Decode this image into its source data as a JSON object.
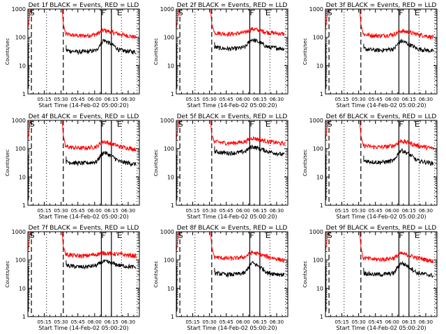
{
  "figure": {
    "layout": "3x3 grid of detector light curves"
  },
  "chart_data": [
    {
      "type": "line",
      "title": "Det 1f BLACK = Events, RED = LLD",
      "xlabel": "Start Time (14-Feb-02 05:00:20)",
      "ylabel": "Counts/sec",
      "yscale": "log",
      "ylim": [
        1,
        1000
      ],
      "xlim_minutes_after_0500": [
        0.33,
        100
      ],
      "x_tick_labels": [
        "05:15",
        "05:30",
        "05:45",
        "06:00",
        "06:15",
        "06:30"
      ],
      "y_tick_labels": [
        "1",
        "10",
        "100",
        "1000"
      ],
      "markers": {
        "S": 2,
        "F": 66,
        "E": 80
      },
      "vlines": {
        "dashed": [
          3.5,
          32
        ],
        "dotted": [
          17,
          84,
          98
        ],
        "solid": [
          66,
          75
        ]
      },
      "series": [
        {
          "name": "LLD",
          "color": "#ff0000",
          "baseline": 130,
          "flare_peak": 180,
          "end": 100
        },
        {
          "name": "Events",
          "color": "#000000",
          "baseline": 35,
          "flare_peak": 80,
          "end": 30
        }
      ]
    },
    {
      "type": "line",
      "title": "Det 2f BLACK = Events, RED = LLD",
      "xlabel": "Start Time (14-Feb-02 05:00:20)",
      "ylabel": "Counts/sec",
      "yscale": "log",
      "ylim": [
        1,
        1000
      ],
      "xlim_minutes_after_0500": [
        0.33,
        100
      ],
      "x_tick_labels": [
        "05:15",
        "05:30",
        "05:45",
        "06:00",
        "06:15",
        "06:30"
      ],
      "y_tick_labels": [
        "1",
        "10",
        "100",
        "1000"
      ],
      "markers": {
        "S": 2,
        "F": 66,
        "E": 80
      },
      "vlines": {
        "dashed": [
          3.5,
          32
        ],
        "dotted": [
          17,
          84,
          98
        ],
        "solid": [
          66,
          75
        ]
      },
      "series": [
        {
          "name": "LLD",
          "color": "#ff0000",
          "baseline": 150,
          "flare_peak": 200,
          "end": 130
        },
        {
          "name": "Events",
          "color": "#000000",
          "baseline": 45,
          "flare_peak": 85,
          "end": 40
        }
      ]
    },
    {
      "type": "line",
      "title": "Det 3f BLACK = Events, RED = LLD",
      "xlabel": "Start Time (14-Feb-02 05:00:20)",
      "ylabel": "Counts/sec",
      "yscale": "log",
      "ylim": [
        1,
        1000
      ],
      "xlim_minutes_after_0500": [
        0.33,
        100
      ],
      "x_tick_labels": [
        "05:15",
        "05:30",
        "05:45",
        "06:00",
        "06:15",
        "06:30"
      ],
      "y_tick_labels": [
        "1",
        "10",
        "100",
        "1000"
      ],
      "markers": {
        "S": 2,
        "F": 66,
        "E": 80
      },
      "vlines": {
        "dashed": [
          3.5,
          32
        ],
        "dotted": [
          17,
          84,
          98
        ],
        "solid": [
          66,
          75
        ]
      },
      "series": [
        {
          "name": "LLD",
          "color": "#ff0000",
          "baseline": 130,
          "flare_peak": 170,
          "end": 100
        },
        {
          "name": "Events",
          "color": "#000000",
          "baseline": 40,
          "flare_peak": 75,
          "end": 32
        }
      ]
    },
    {
      "type": "line",
      "title": "Det 4f BLACK = Events, RED = LLD",
      "xlabel": "Start Time (14-Feb-02 05:00:20)",
      "ylabel": "Counts/sec",
      "yscale": "log",
      "ylim": [
        1,
        1000
      ],
      "xlim_minutes_after_0500": [
        0.33,
        100
      ],
      "x_tick_labels": [
        "05:15",
        "05:30",
        "05:45",
        "06:00",
        "06:15",
        "06:30"
      ],
      "y_tick_labels": [
        "1",
        "10",
        "100",
        "1000"
      ],
      "markers": {
        "S": 2,
        "F": 66,
        "E": 80
      },
      "vlines": {
        "dashed": [
          3.5,
          32
        ],
        "dotted": [
          17,
          84,
          98
        ],
        "solid": [
          66,
          75
        ]
      },
      "series": [
        {
          "name": "LLD",
          "color": "#ff0000",
          "baseline": 120,
          "flare_peak": 180,
          "end": 95
        },
        {
          "name": "Events",
          "color": "#000000",
          "baseline": 35,
          "flare_peak": 75,
          "end": 28
        }
      ]
    },
    {
      "type": "line",
      "title": "Det 5f BLACK = Events, RED = LLD",
      "xlabel": "Start Time (14-Feb-02 05:00:20)",
      "ylabel": "Counts/sec",
      "yscale": "log",
      "ylim": [
        1,
        1000
      ],
      "xlim_minutes_after_0500": [
        0.33,
        100
      ],
      "x_tick_labels": [
        "05:15",
        "05:30",
        "05:45",
        "06:00",
        "06:15",
        "06:30"
      ],
      "y_tick_labels": [
        "1",
        "10",
        "100",
        "1000"
      ],
      "markers": {
        "S": 2,
        "F": 66,
        "E": 80
      },
      "vlines": {
        "dashed": [
          3.5,
          32
        ],
        "dotted": [
          17,
          84,
          98
        ],
        "solid": [
          66,
          75
        ]
      },
      "series": [
        {
          "name": "LLD",
          "color": "#ff0000",
          "baseline": 180,
          "flare_peak": 240,
          "end": 150
        },
        {
          "name": "Events",
          "color": "#000000",
          "baseline": 80,
          "flare_peak": 120,
          "end": 60
        }
      ]
    },
    {
      "type": "line",
      "title": "Det 6f BLACK = Events, RED = LLD",
      "xlabel": "Start Time (14-Feb-02 05:00:20)",
      "ylabel": "Counts/sec",
      "yscale": "log",
      "ylim": [
        1,
        1000
      ],
      "xlim_minutes_after_0500": [
        0.33,
        100
      ],
      "x_tick_labels": [
        "05:15",
        "05:30",
        "05:45",
        "06:00",
        "06:15",
        "06:30"
      ],
      "y_tick_labels": [
        "1",
        "10",
        "100",
        "1000"
      ],
      "markers": {
        "S": 2,
        "F": 66,
        "E": 80
      },
      "vlines": {
        "dashed": [
          3.5,
          32
        ],
        "dotted": [
          17,
          84,
          98
        ],
        "solid": [
          66,
          75
        ]
      },
      "series": [
        {
          "name": "LLD",
          "color": "#ff0000",
          "baseline": 130,
          "flare_peak": 190,
          "end": 100
        },
        {
          "name": "Events",
          "color": "#000000",
          "baseline": 38,
          "flare_peak": 90,
          "end": 30
        }
      ]
    },
    {
      "type": "line",
      "title": "Det 7f BLACK = Events, RED = LLD",
      "xlabel": "Start Time (14-Feb-02 05:00:20)",
      "ylabel": "Counts/sec",
      "yscale": "log",
      "ylim": [
        1,
        1000
      ],
      "xlim_minutes_after_0500": [
        0.33,
        100
      ],
      "x_tick_labels": [
        "05:15",
        "05:30",
        "05:45",
        "06:00",
        "06:15",
        "06:30"
      ],
      "y_tick_labels": [
        "1",
        "10",
        "100",
        "1000"
      ],
      "markers": {
        "S": 2,
        "F": 66,
        "E": 80
      },
      "vlines": {
        "dashed": [
          3.5,
          32
        ],
        "dotted": [
          17,
          84,
          98
        ],
        "solid": [
          66,
          75
        ]
      },
      "series": [
        {
          "name": "LLD",
          "color": "#ff0000",
          "baseline": 160,
          "flare_peak": 180,
          "end": 140
        },
        {
          "name": "Events",
          "color": "#000000",
          "baseline": 65,
          "flare_peak": 90,
          "end": 55
        }
      ]
    },
    {
      "type": "line",
      "title": "Det 8f BLACK = Events, RED = LLD",
      "xlabel": "Start Time (14-Feb-02 05:00:20)",
      "ylabel": "Counts/sec",
      "yscale": "log",
      "ylim": [
        1,
        1000
      ],
      "xlim_minutes_after_0500": [
        0.33,
        100
      ],
      "x_tick_labels": [
        "05:15",
        "05:30",
        "05:45",
        "06:00",
        "06:15",
        "06:30"
      ],
      "y_tick_labels": [
        "1",
        "10",
        "100",
        "1000"
      ],
      "markers": {
        "S": 2,
        "F": 66,
        "E": 80
      },
      "vlines": {
        "dashed": [
          3.5,
          32
        ],
        "dotted": [
          17,
          84,
          98
        ],
        "solid": [
          66,
          75
        ]
      },
      "series": [
        {
          "name": "LLD",
          "color": "#ff0000",
          "baseline": 130,
          "flare_peak": 185,
          "end": 95
        },
        {
          "name": "Events",
          "color": "#000000",
          "baseline": 35,
          "flare_peak": 80,
          "end": 30
        }
      ]
    },
    {
      "type": "line",
      "title": "Det 9f BLACK = Events, RED = LLD",
      "xlabel": "Start Time (14-Feb-02 05:00:20)",
      "ylabel": "Counts/sec",
      "yscale": "log",
      "ylim": [
        1,
        1000
      ],
      "xlim_minutes_after_0500": [
        0.33,
        100
      ],
      "x_tick_labels": [
        "05:15",
        "05:30",
        "05:45",
        "06:00",
        "06:15",
        "06:30"
      ],
      "y_tick_labels": [
        "1",
        "10",
        "100",
        "1000"
      ],
      "markers": {
        "S": 2,
        "F": 66,
        "E": 80
      },
      "vlines": {
        "dashed": [
          3.5,
          32
        ],
        "dotted": [
          17,
          84,
          98
        ],
        "solid": [
          66,
          75
        ]
      },
      "series": [
        {
          "name": "LLD",
          "color": "#ff0000",
          "baseline": 120,
          "flare_peak": 170,
          "end": 90
        },
        {
          "name": "Events",
          "color": "#000000",
          "baseline": 35,
          "flare_peak": 80,
          "end": 28
        }
      ]
    }
  ]
}
